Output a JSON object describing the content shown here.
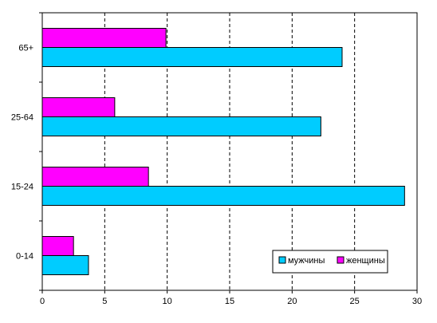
{
  "chart_data": {
    "type": "bar",
    "orientation": "horizontal",
    "categories": [
      "0-14",
      "15-24",
      "25-64",
      "65+"
    ],
    "series": [
      {
        "name": "мужчины",
        "color": "#00ccff",
        "values": [
          3.7,
          29.0,
          22.3,
          24.0
        ]
      },
      {
        "name": "женщины",
        "color": "#ff00ff",
        "values": [
          2.5,
          8.5,
          5.8,
          9.9
        ]
      }
    ],
    "xlim": [
      0,
      30
    ],
    "xticks": [
      "0",
      "5",
      "10",
      "15",
      "20",
      "25",
      "30"
    ],
    "grid": "vertical dashed",
    "legend_position": "bottom-right"
  }
}
